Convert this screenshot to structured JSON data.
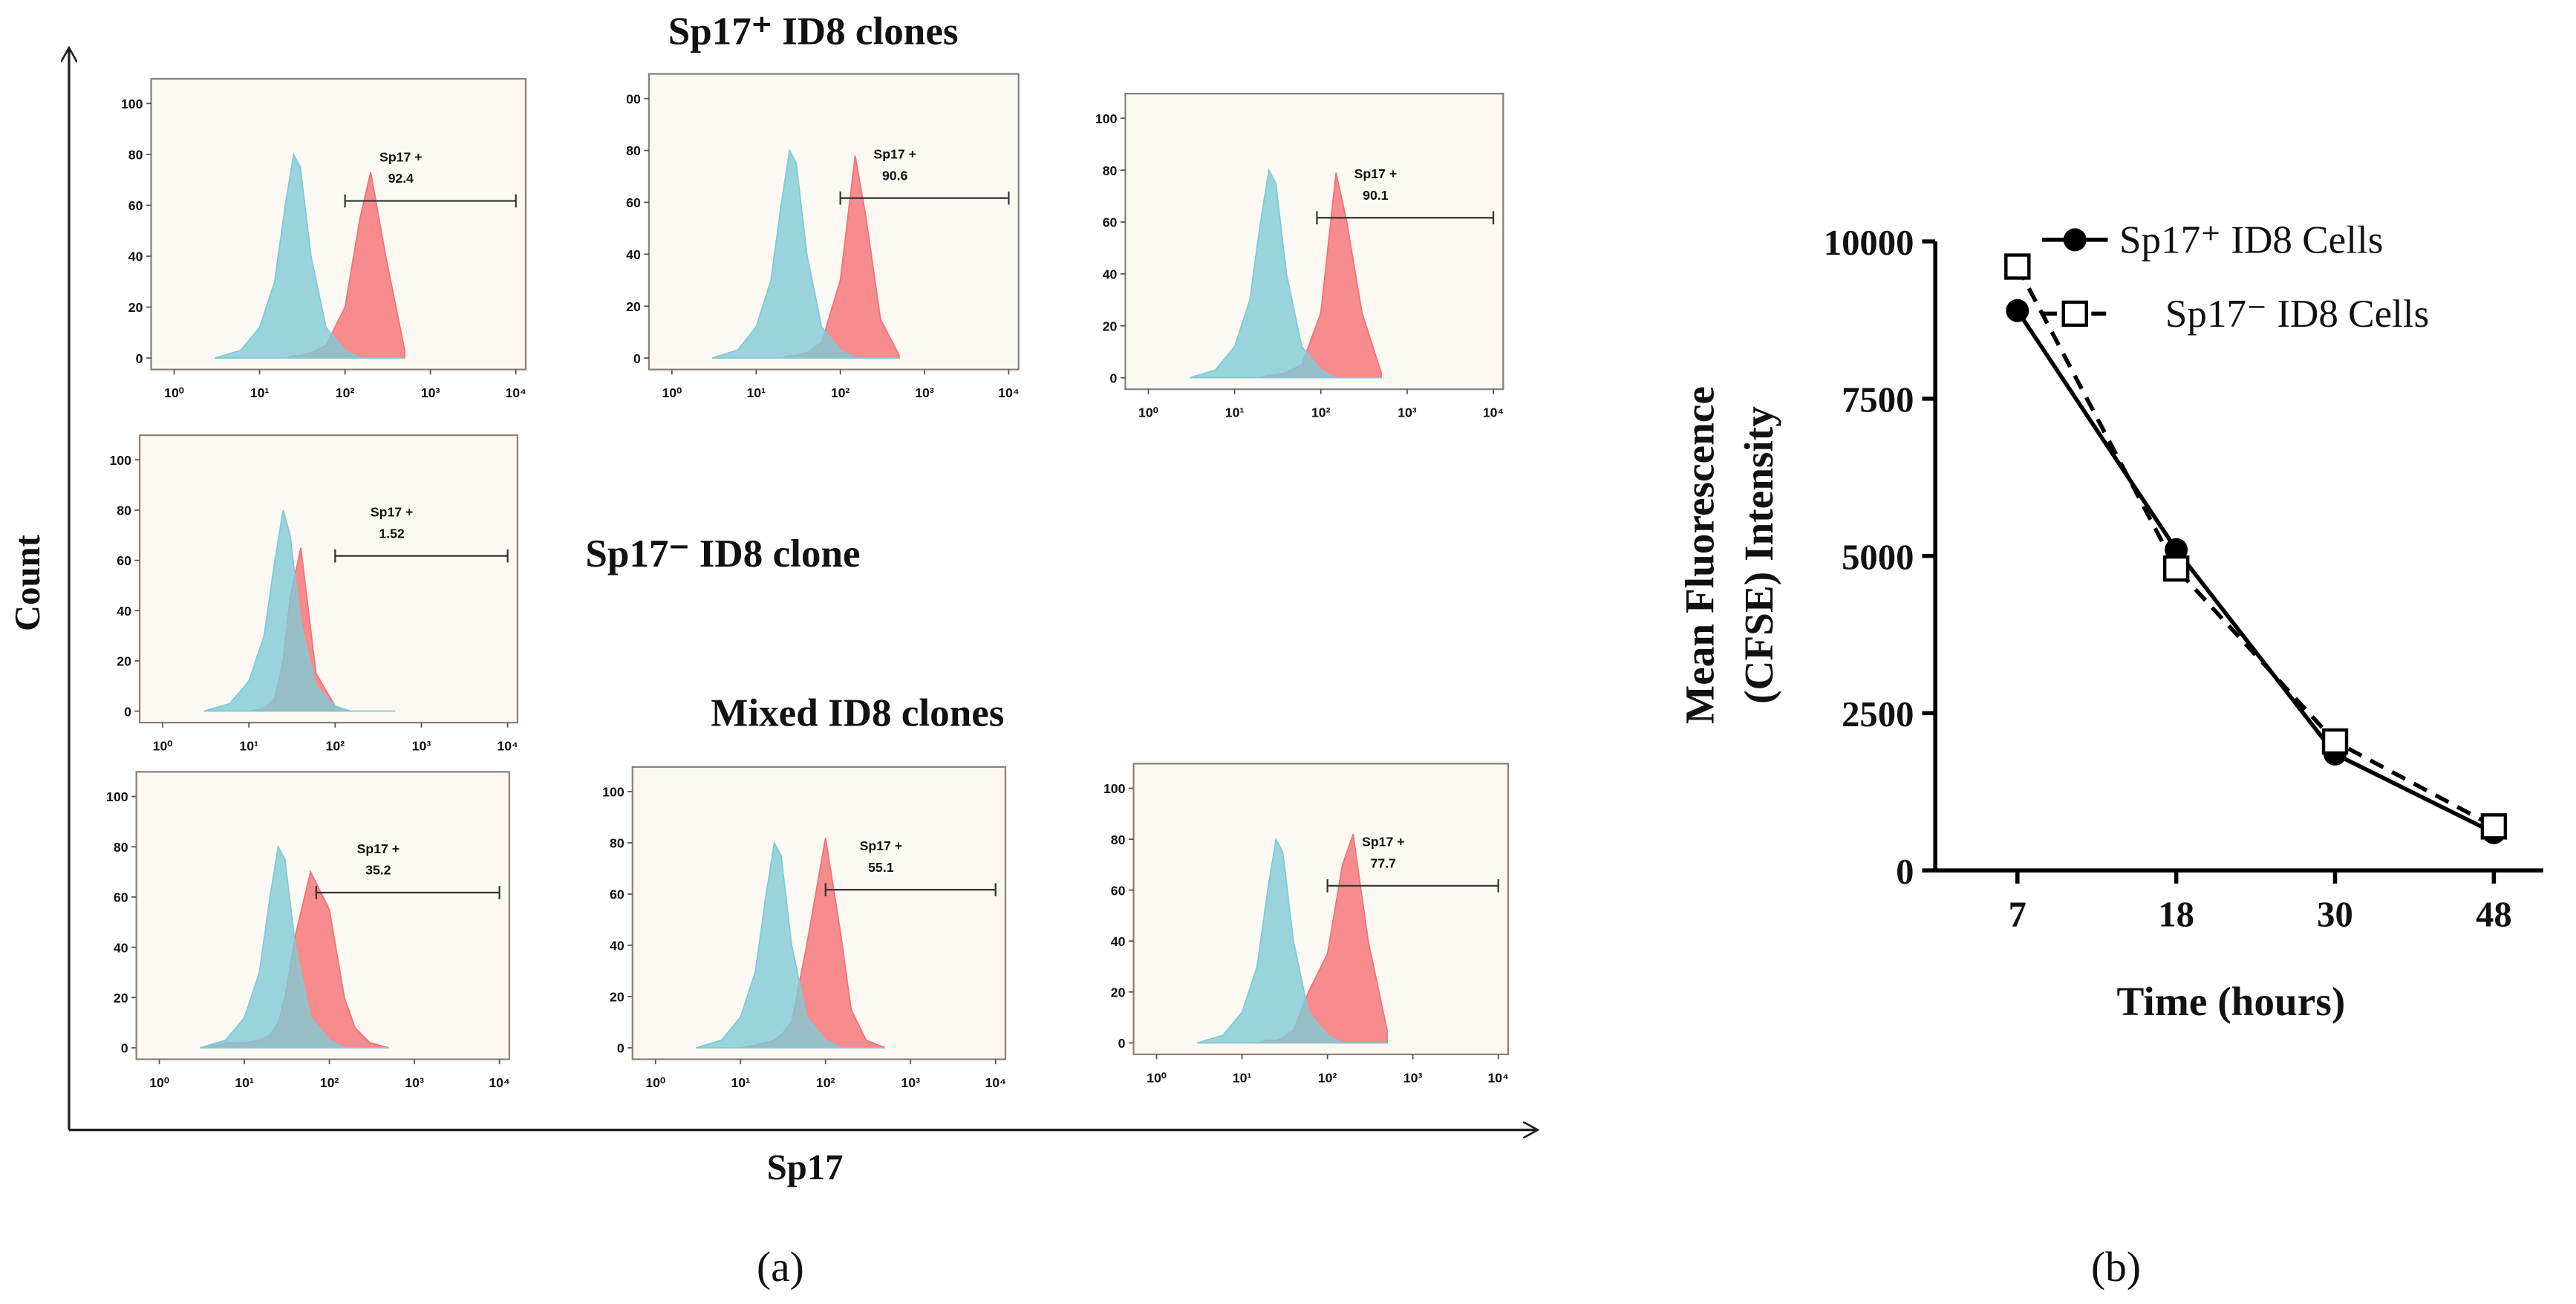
{
  "figure": {
    "count_label": "Count",
    "x_label": "Sp17",
    "group_titles": [
      "Sp17⁺ ID8 clones",
      "Sp17⁻ ID8 clone",
      "Mixed ID8 clones"
    ],
    "panel_labels": [
      "(a)",
      "(b)"
    ]
  },
  "chart_data": [
    {
      "type": "histogram_density",
      "x": [
        3,
        6,
        10,
        15,
        20,
        25,
        30,
        40,
        60,
        100,
        150,
        200,
        300,
        500
      ],
      "series": [
        {
          "color": "#f47174",
          "values": [
            0,
            0,
            0,
            0,
            0,
            1,
            1,
            2,
            5,
            20,
            55,
            73,
            40,
            3
          ]
        },
        {
          "color": "#7fcbd6",
          "values": [
            0,
            3,
            12,
            30,
            60,
            80,
            75,
            40,
            12,
            3,
            0,
            0,
            0,
            0
          ]
        }
      ],
      "xlim": [
        1,
        10000
      ],
      "log_x": true,
      "xticks": [
        {
          "value": 1,
          "label": "10⁰"
        },
        {
          "value": 10,
          "label": "10¹"
        },
        {
          "value": 100,
          "label": "10²"
        },
        {
          "value": 1000,
          "label": "10³"
        },
        {
          "value": 10000,
          "label": "10⁴"
        }
      ],
      "ylim": [
        0,
        100
      ],
      "yticks": [
        0,
        20,
        40,
        60,
        80,
        100
      ],
      "gate": {
        "label": "Sp17 +",
        "value": 92.4,
        "x": [
          100,
          10000
        ]
      }
    },
    {
      "type": "histogram_density",
      "x": [
        3,
        6,
        10,
        15,
        20,
        25,
        30,
        40,
        60,
        100,
        150,
        200,
        300,
        500
      ],
      "series": [
        {
          "color": "#f47174",
          "values": [
            0,
            0,
            0,
            0,
            0,
            1,
            1,
            2,
            6,
            30,
            78,
            55,
            15,
            1
          ]
        },
        {
          "color": "#7fcbd6",
          "values": [
            0,
            3,
            12,
            30,
            60,
            80,
            75,
            40,
            12,
            3,
            0,
            0,
            0,
            0
          ]
        }
      ],
      "xlim": [
        1,
        10000
      ],
      "log_x": true,
      "xticks": [
        {
          "value": 1,
          "label": "10⁰"
        },
        {
          "value": 10,
          "label": "10¹"
        },
        {
          "value": 100,
          "label": "10²"
        },
        {
          "value": 1000,
          "label": "10³"
        },
        {
          "value": 10000,
          "label": "10⁴"
        }
      ],
      "ylim": [
        0,
        100
      ],
      "yticks": [
        0,
        20,
        40,
        60,
        80,
        {
          "value": 100,
          "label": "00"
        }
      ],
      "gate": {
        "label": "Sp17 +",
        "value": 90.6,
        "x": [
          100,
          10000
        ]
      }
    },
    {
      "type": "histogram_density",
      "x": [
        3,
        6,
        10,
        15,
        20,
        25,
        30,
        40,
        60,
        100,
        150,
        200,
        300,
        500
      ],
      "series": [
        {
          "color": "#f47174",
          "values": [
            0,
            0,
            0,
            0,
            0,
            1,
            1,
            2,
            5,
            25,
            79,
            60,
            25,
            2
          ]
        },
        {
          "color": "#7fcbd6",
          "values": [
            0,
            3,
            12,
            30,
            60,
            80,
            75,
            40,
            12,
            3,
            0,
            0,
            0,
            0
          ]
        }
      ],
      "xlim": [
        1,
        10000
      ],
      "log_x": true,
      "xticks": [
        {
          "value": 1,
          "label": "10⁰"
        },
        {
          "value": 10,
          "label": "10¹"
        },
        {
          "value": 100,
          "label": "10²"
        },
        {
          "value": 1000,
          "label": "10³"
        },
        {
          "value": 10000,
          "label": "10⁴"
        }
      ],
      "ylim": [
        0,
        100
      ],
      "yticks": [
        0,
        20,
        40,
        60,
        80,
        100
      ],
      "gate": {
        "label": "Sp17 +",
        "value": 90.1,
        "x": [
          90,
          10000
        ]
      }
    },
    {
      "type": "histogram_density",
      "x": [
        3,
        6,
        10,
        15,
        20,
        25,
        30,
        40,
        60,
        100,
        150,
        200,
        300,
        500
      ],
      "series": [
        {
          "color": "#f47174",
          "values": [
            0,
            0,
            0,
            1,
            5,
            20,
            45,
            65,
            15,
            2,
            0,
            0,
            0,
            0
          ]
        },
        {
          "color": "#7fcbd6",
          "values": [
            0,
            3,
            12,
            30,
            60,
            80,
            70,
            35,
            10,
            2,
            0,
            0,
            0,
            0
          ]
        }
      ],
      "xlim": [
        1,
        10000
      ],
      "log_x": true,
      "xticks": [
        {
          "value": 1,
          "label": "10⁰"
        },
        {
          "value": 10,
          "label": "10¹"
        },
        {
          "value": 100,
          "label": "10²"
        },
        {
          "value": 1000,
          "label": "10³"
        },
        {
          "value": 10000,
          "label": "10⁴"
        }
      ],
      "ylim": [
        0,
        100
      ],
      "yticks": [
        0,
        20,
        40,
        60,
        80,
        100
      ],
      "gate": {
        "label": "Sp17 +",
        "value": 1.52,
        "x": [
          100,
          10000
        ]
      }
    },
    {
      "type": "histogram_density",
      "x": [
        3,
        6,
        10,
        15,
        20,
        25,
        30,
        40,
        60,
        100,
        150,
        200,
        300,
        500
      ],
      "series": [
        {
          "color": "#f47174",
          "values": [
            0,
            2,
            2,
            3,
            5,
            10,
            20,
            45,
            70,
            55,
            20,
            8,
            2,
            0
          ]
        },
        {
          "color": "#7fcbd6",
          "values": [
            0,
            3,
            12,
            30,
            60,
            80,
            75,
            40,
            12,
            3,
            0,
            0,
            0,
            0
          ]
        }
      ],
      "xlim": [
        1,
        10000
      ],
      "log_x": true,
      "xticks": [
        {
          "value": 1,
          "label": "10⁰"
        },
        {
          "value": 10,
          "label": "10¹"
        },
        {
          "value": 100,
          "label": "10²"
        },
        {
          "value": 1000,
          "label": "10³"
        },
        {
          "value": 10000,
          "label": "10⁴"
        }
      ],
      "ylim": [
        0,
        100
      ],
      "yticks": [
        0,
        20,
        40,
        60,
        80,
        100
      ],
      "gate": {
        "label": "Sp17 +",
        "value": 35.2,
        "x": [
          70,
          10000
        ]
      }
    },
    {
      "type": "histogram_density",
      "x": [
        3,
        6,
        10,
        15,
        20,
        25,
        30,
        40,
        60,
        100,
        150,
        200,
        300,
        500
      ],
      "series": [
        {
          "color": "#f47174",
          "values": [
            0,
            0,
            0,
            1,
            2,
            3,
            5,
            10,
            40,
            82,
            45,
            15,
            3,
            0
          ]
        },
        {
          "color": "#7fcbd6",
          "values": [
            0,
            3,
            12,
            30,
            60,
            80,
            75,
            40,
            12,
            3,
            0,
            0,
            0,
            0
          ]
        }
      ],
      "xlim": [
        1,
        10000
      ],
      "log_x": true,
      "xticks": [
        {
          "value": 1,
          "label": "10⁰"
        },
        {
          "value": 10,
          "label": "10¹"
        },
        {
          "value": 100,
          "label": "10²"
        },
        {
          "value": 1000,
          "label": "10³"
        },
        {
          "value": 10000,
          "label": "10⁴"
        }
      ],
      "ylim": [
        0,
        100
      ],
      "yticks": [
        0,
        20,
        40,
        60,
        80,
        100
      ],
      "gate": {
        "label": "Sp17 +",
        "value": 55.1,
        "x": [
          100,
          10000
        ]
      }
    },
    {
      "type": "histogram_density",
      "x": [
        3,
        6,
        10,
        15,
        20,
        25,
        30,
        40,
        60,
        100,
        150,
        200,
        300,
        500
      ],
      "series": [
        {
          "color": "#f47174",
          "values": [
            0,
            0,
            0,
            0,
            1,
            1,
            2,
            5,
            20,
            35,
            70,
            82,
            40,
            5
          ]
        },
        {
          "color": "#7fcbd6",
          "values": [
            0,
            3,
            12,
            30,
            60,
            80,
            75,
            40,
            12,
            3,
            0,
            0,
            0,
            0
          ]
        }
      ],
      "xlim": [
        1,
        10000
      ],
      "log_x": true,
      "xticks": [
        {
          "value": 1,
          "label": "10⁰"
        },
        {
          "value": 10,
          "label": "10¹"
        },
        {
          "value": 100,
          "label": "10²"
        },
        {
          "value": 1000,
          "label": "10³"
        },
        {
          "value": 10000,
          "label": "10⁴"
        }
      ],
      "ylim": [
        0,
        100
      ],
      "yticks": [
        0,
        20,
        40,
        60,
        80,
        100
      ],
      "gate": {
        "label": "Sp17 +",
        "value": 77.7,
        "x": [
          100,
          10000
        ]
      }
    },
    {
      "type": "line",
      "categories": [
        7,
        18,
        30,
        48
      ],
      "series": [
        {
          "name": "Sp17⁺ ID8 Cells",
          "color": "#000000",
          "marker": "circle",
          "line_style": "solid",
          "values": [
            8900,
            5100,
            1850,
            600
          ]
        },
        {
          "name": "Sp17⁻ ID8 Cells",
          "color": "#000000",
          "marker": "square",
          "line_style": "dashed",
          "values": [
            9600,
            4800,
            2050,
            700
          ]
        }
      ],
      "ylim": [
        0,
        10000
      ],
      "yticks": [
        0,
        2500,
        5000,
        7500,
        10000
      ],
      "xlabel": "Time (hours)",
      "ylabel": [
        "Mean Fluorescence",
        "(CFSE) Intensity"
      ]
    }
  ]
}
